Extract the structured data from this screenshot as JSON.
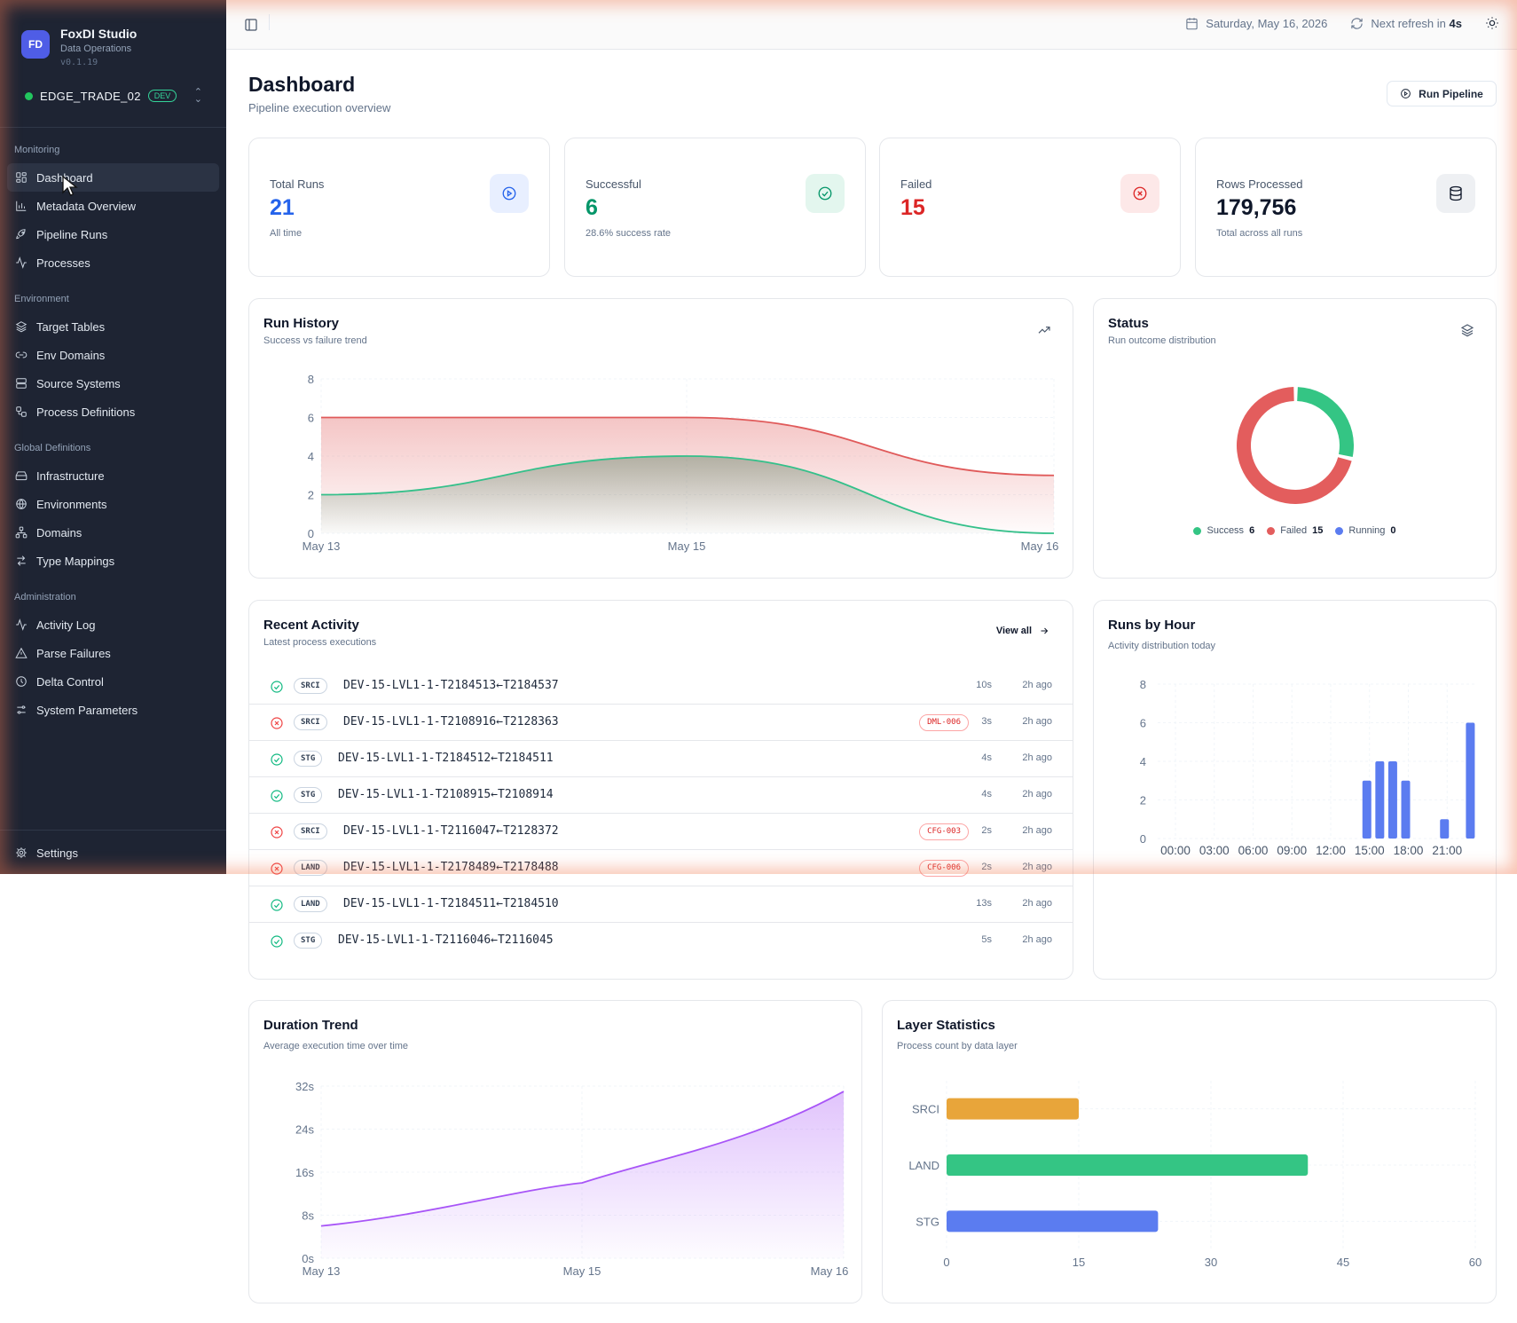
{
  "brand": {
    "initials": "FD",
    "title": "FoxDI Studio",
    "subtitle": "Data Operations",
    "version": "v0.1.19"
  },
  "environment": {
    "name": "EDGE_TRADE_02",
    "badge": "DEV",
    "status_color": "#22c55e"
  },
  "sidebar": {
    "sections": [
      {
        "label": "Monitoring",
        "items": [
          {
            "label": "Dashboard",
            "icon": "dashboard-icon",
            "active": true
          },
          {
            "label": "Metadata Overview",
            "icon": "bar-chart-icon"
          },
          {
            "label": "Pipeline Runs",
            "icon": "rocket-icon"
          },
          {
            "label": "Processes",
            "icon": "activity-icon"
          }
        ]
      },
      {
        "label": "Environment",
        "items": [
          {
            "label": "Target Tables",
            "icon": "layers-icon"
          },
          {
            "label": "Env Domains",
            "icon": "link-icon"
          },
          {
            "label": "Source Systems",
            "icon": "server-icon"
          },
          {
            "label": "Process Definitions",
            "icon": "workflow-icon"
          }
        ]
      },
      {
        "label": "Global Definitions",
        "items": [
          {
            "label": "Infrastructure",
            "icon": "hard-drive-icon"
          },
          {
            "label": "Environments",
            "icon": "globe-icon"
          },
          {
            "label": "Domains",
            "icon": "network-icon"
          },
          {
            "label": "Type Mappings",
            "icon": "arrows-swap-icon"
          }
        ]
      },
      {
        "label": "Administration",
        "items": [
          {
            "label": "Activity Log",
            "icon": "activity-icon"
          },
          {
            "label": "Parse Failures",
            "icon": "warning-triangle-icon"
          },
          {
            "label": "Delta Control",
            "icon": "clock-icon"
          },
          {
            "label": "System Parameters",
            "icon": "sliders-icon"
          }
        ]
      }
    ],
    "settings_label": "Settings"
  },
  "topbar": {
    "date": "Saturday, May 16, 2026",
    "refresh_prefix": "Next refresh in",
    "refresh_value": "4s"
  },
  "page": {
    "title": "Dashboard",
    "subtitle": "Pipeline execution overview",
    "run_button": "Run Pipeline"
  },
  "stats": [
    {
      "label": "Total Runs",
      "value": "21",
      "note": "All time",
      "color": "#2563eb",
      "icon": "play-circle-icon"
    },
    {
      "label": "Successful",
      "value": "6",
      "note": "28.6% success rate",
      "color": "#059669",
      "icon": "check-circle-icon"
    },
    {
      "label": "Failed",
      "value": "15",
      "note": "",
      "color": "#dc2626",
      "icon": "x-circle-icon"
    },
    {
      "label": "Rows Processed",
      "value": "179,756",
      "note": "Total across all runs",
      "color": "#0f172a",
      "icon": "database-icon"
    }
  ],
  "run_history": {
    "title": "Run History",
    "subtitle": "Success vs failure trend",
    "chart_data": {
      "type": "area",
      "x": [
        "May 13",
        "May 15",
        "May 16"
      ],
      "ylim": [
        0,
        8
      ],
      "yticks": [
        0,
        2,
        4,
        6,
        8
      ],
      "series": [
        {
          "name": "Failed",
          "values": [
            6,
            6,
            3
          ],
          "color": "#e05a5a"
        },
        {
          "name": "Success",
          "values": [
            2,
            4,
            0
          ],
          "color": "#34c08a"
        }
      ]
    }
  },
  "status": {
    "title": "Status",
    "subtitle": "Run outcome distribution",
    "chart_data": {
      "type": "pie",
      "slices": [
        {
          "name": "Success",
          "value": 6,
          "color": "#34c584"
        },
        {
          "name": "Failed",
          "value": 15,
          "color": "#e35d5d"
        },
        {
          "name": "Running",
          "value": 0,
          "color": "#5b7cf0"
        }
      ]
    }
  },
  "activity": {
    "title": "Recent Activity",
    "subtitle": "Latest process executions",
    "view_all": "View all",
    "rows": [
      {
        "status": "success",
        "layer": "SRCI",
        "name": "DEV-15-LVL1-1-T2184513←T2184537",
        "error": "",
        "duration": "10s",
        "time": "2h ago"
      },
      {
        "status": "failed",
        "layer": "SRCI",
        "name": "DEV-15-LVL1-1-T2108916←T2128363",
        "error": "DML-006",
        "duration": "3s",
        "time": "2h ago"
      },
      {
        "status": "success",
        "layer": "STG",
        "name": "DEV-15-LVL1-1-T2184512←T2184511",
        "error": "",
        "duration": "4s",
        "time": "2h ago"
      },
      {
        "status": "success",
        "layer": "STG",
        "name": "DEV-15-LVL1-1-T2108915←T2108914",
        "error": "",
        "duration": "4s",
        "time": "2h ago"
      },
      {
        "status": "failed",
        "layer": "SRCI",
        "name": "DEV-15-LVL1-1-T2116047←T2128372",
        "error": "CFG-003",
        "duration": "2s",
        "time": "2h ago"
      },
      {
        "status": "failed",
        "layer": "LAND",
        "name": "DEV-15-LVL1-1-T2178489←T2178488",
        "error": "CFG-006",
        "duration": "2s",
        "time": "2h ago"
      },
      {
        "status": "success",
        "layer": "LAND",
        "name": "DEV-15-LVL1-1-T2184511←T2184510",
        "error": "",
        "duration": "13s",
        "time": "2h ago"
      },
      {
        "status": "success",
        "layer": "STG",
        "name": "DEV-15-LVL1-1-T2116046←T2116045",
        "error": "",
        "duration": "5s",
        "time": "2h ago"
      }
    ]
  },
  "runs_by_hour": {
    "title": "Runs by Hour",
    "subtitle": "Activity distribution today",
    "chart_data": {
      "type": "bar",
      "ylim": [
        0,
        8
      ],
      "yticks": [
        0,
        2,
        4,
        6,
        8
      ],
      "tick_labels": [
        "00:00",
        "03:00",
        "06:00",
        "09:00",
        "12:00",
        "15:00",
        "18:00",
        "21:00"
      ],
      "hours": [
        15,
        16,
        17,
        18,
        21,
        23
      ],
      "values": [
        3,
        4,
        4,
        3,
        1,
        6
      ],
      "color": "#5b7cf0"
    }
  },
  "duration_trend": {
    "title": "Duration Trend",
    "subtitle": "Average execution time over time",
    "chart_data": {
      "type": "area",
      "x": [
        "May 13",
        "May 15",
        "May 16"
      ],
      "ylim": [
        0,
        32
      ],
      "yticks": [
        "0s",
        "8s",
        "16s",
        "24s",
        "32s"
      ],
      "values": [
        6,
        14,
        31
      ],
      "color": "#a855f7"
    }
  },
  "layer_stats": {
    "title": "Layer Statistics",
    "subtitle": "Process count by data layer",
    "chart_data": {
      "type": "bar",
      "orientation": "horizontal",
      "categories": [
        "SRCI",
        "LAND",
        "STG"
      ],
      "values": [
        15,
        41,
        24
      ],
      "colors": [
        "#e8a53a",
        "#34c584",
        "#5b7cf0"
      ],
      "xlim": [
        0,
        60
      ],
      "xticks": [
        0,
        15,
        30,
        45,
        60
      ]
    }
  }
}
